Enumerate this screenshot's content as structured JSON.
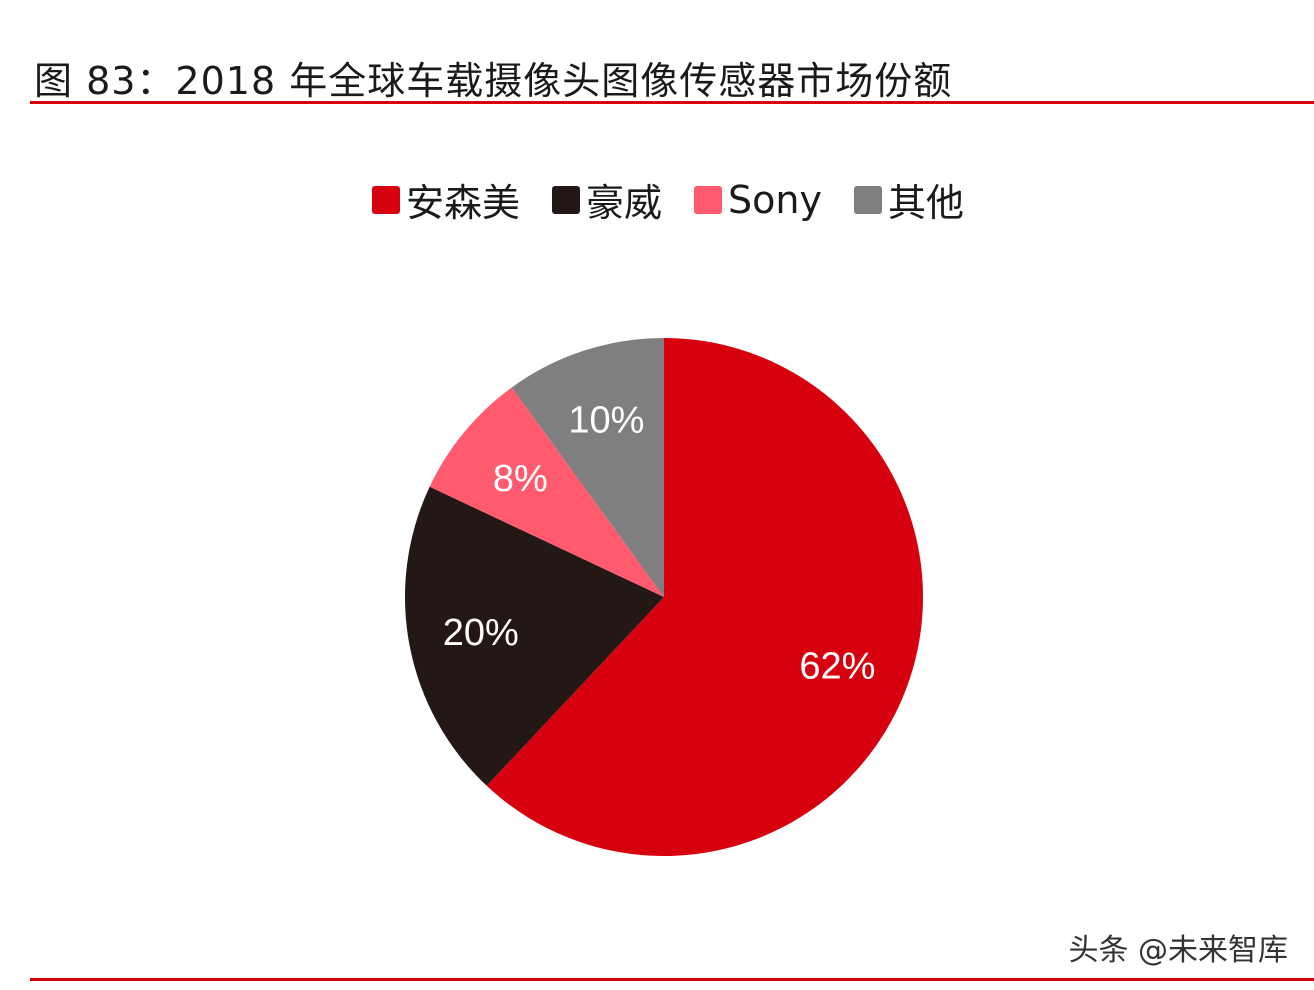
{
  "title": "图 83：2018 年全球车载摄像头图像传感器市场份额",
  "watermark": "头条 @未来智库",
  "chart_data": {
    "type": "pie",
    "title": "图 83：2018 年全球车载摄像头图像传感器市场份额",
    "categories": [
      "安森美",
      "豪威",
      "Sony",
      "其他"
    ],
    "values": [
      62,
      20,
      8,
      10
    ],
    "labels": [
      "62%",
      "20%",
      "8%",
      "10%"
    ],
    "colors": [
      "#d7000f",
      "#231815",
      "#ff5a6e",
      "#7f7f7f"
    ],
    "start_angle": "top, clockwise",
    "legend_position": "top-center"
  }
}
